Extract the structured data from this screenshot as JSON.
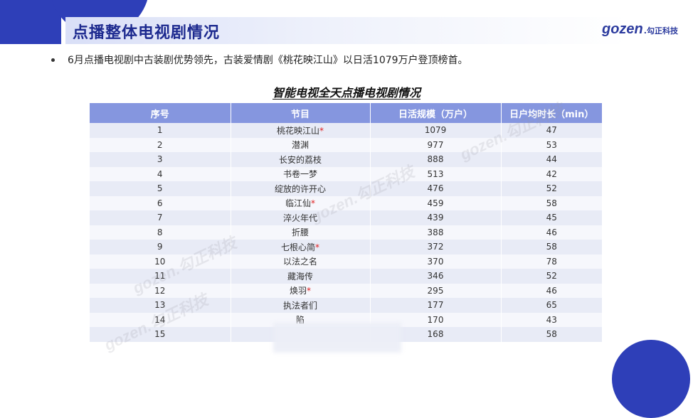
{
  "header": {
    "title": "点播整体电视剧情况",
    "logo_mark": "gozen",
    "logo_cn": ".勾正科技"
  },
  "summary": {
    "bullet": "6月点播电视剧中古装剧优势领先，古装爱情剧《桃花映江山》以日活1079万户登顶榜首。"
  },
  "table": {
    "title": "智能电视全天点播电视剧情况",
    "columns": [
      "序号",
      "节目",
      "日活规模（万户）",
      "日户均时长（min）"
    ],
    "rows": [
      {
        "rank": "1",
        "name": "桃花映江山",
        "star": "*",
        "dau": "1079",
        "duration": "47"
      },
      {
        "rank": "2",
        "name": "潜渊",
        "star": "",
        "dau": "977",
        "duration": "53"
      },
      {
        "rank": "3",
        "name": "长安的荔枝",
        "star": "",
        "dau": "888",
        "duration": "44"
      },
      {
        "rank": "4",
        "name": "书卷一梦",
        "star": "",
        "dau": "513",
        "duration": "42"
      },
      {
        "rank": "5",
        "name": "绽放的许开心",
        "star": "",
        "dau": "476",
        "duration": "52"
      },
      {
        "rank": "6",
        "name": "临江仙",
        "star": "*",
        "dau": "459",
        "duration": "58"
      },
      {
        "rank": "7",
        "name": "淬火年代",
        "star": "",
        "dau": "439",
        "duration": "45"
      },
      {
        "rank": "8",
        "name": "折腰",
        "star": "",
        "dau": "388",
        "duration": "46"
      },
      {
        "rank": "9",
        "name": "七根心简",
        "star": "*",
        "dau": "372",
        "duration": "58"
      },
      {
        "rank": "10",
        "name": "以法之名",
        "star": "",
        "dau": "370",
        "duration": "78"
      },
      {
        "rank": "11",
        "name": "藏海传",
        "star": "",
        "dau": "346",
        "duration": "52"
      },
      {
        "rank": "12",
        "name": "焕羽",
        "star": "*",
        "dau": "295",
        "duration": "46"
      },
      {
        "rank": "13",
        "name": "执法者们",
        "star": "",
        "dau": "177",
        "duration": "65"
      },
      {
        "rank": "14",
        "name": "陷",
        "star": "",
        "dau": "170",
        "duration": "43"
      },
      {
        "rank": "15",
        "name": "",
        "star": "",
        "dau": "168",
        "duration": "58"
      }
    ]
  },
  "watermarks": [
    "gozen.勾正科技",
    "gozen.勾正科技",
    "gozen.勾正科技",
    "gozen.勾正科技"
  ],
  "colors": {
    "brand": "#2e3fb8",
    "header_row": "#8596df",
    "row_odd": "#e8ebf6",
    "row_even": "#f6f7fc",
    "star": "#e02020"
  }
}
